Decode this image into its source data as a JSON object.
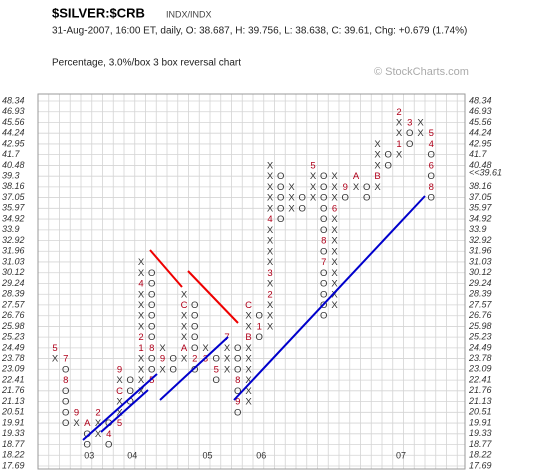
{
  "chart_data": {
    "type": "point-figure",
    "title": "$SILVER:$CRB",
    "subtitle": "INDX/INDX",
    "info": "31-Aug-2007, 16:00 ET, daily, O: 38.687, H: 39.756, L: 38.638, C: 39.61, Chg: +0.679 (1.74%)",
    "method": "Percentage, 3.0%/box 3 box reversal chart",
    "credit": "© StockCharts.com",
    "log_scale": true,
    "grid": true,
    "ylim": [
      17.69,
      48.34
    ],
    "yticks": [
      48.34,
      46.93,
      45.56,
      44.24,
      42.95,
      41.7,
      40.48,
      39.3,
      38.16,
      37.05,
      35.97,
      34.92,
      33.9,
      32.92,
      31.96,
      31.03,
      30.12,
      29.24,
      28.39,
      27.57,
      26.76,
      25.98,
      25.23,
      24.49,
      23.78,
      23.09,
      22.41,
      21.76,
      21.13,
      20.51,
      19.91,
      19.33,
      18.77,
      18.22,
      17.69
    ],
    "y2ticks": [
      48.34,
      46.93,
      45.56,
      44.24,
      42.95,
      41.7,
      40.48,
      {
        "value": 39.61,
        "label": "<<39.61"
      },
      38.16,
      37.05,
      35.97,
      34.92,
      33.9,
      32.92,
      31.96,
      31.03,
      30.12,
      29.24,
      28.39,
      27.57,
      26.76,
      25.98,
      25.23,
      24.49,
      23.78,
      23.09,
      22.41,
      21.76,
      21.13,
      20.51,
      19.91,
      19.33,
      18.77,
      18.22,
      17.69
    ],
    "current_color": "#cc0000",
    "symbol_color": "#333333",
    "month_color": "#b0001a",
    "columns": [
      {
        "top": 24.49,
        "cells": [
          "5",
          "X"
        ]
      },
      {
        "top": 23.78,
        "cells": [
          "7",
          "O",
          "8",
          "O",
          "O",
          "O",
          "O"
        ]
      },
      {
        "top": 20.51,
        "cells": [
          "9",
          "X"
        ]
      },
      {
        "top": 19.91,
        "cells": [
          "A",
          "O",
          "O"
        ],
        "year": "03"
      },
      {
        "top": 20.51,
        "cells": [
          "2",
          "X",
          "X"
        ]
      },
      {
        "top": 19.91,
        "cells": [
          "O",
          "4",
          "O"
        ]
      },
      {
        "top": 23.09,
        "cells": [
          "9",
          "X",
          "C",
          "X",
          "X",
          "5"
        ]
      },
      {
        "top": 22.41,
        "cells": [
          "O",
          "O",
          "O"
        ],
        "year": "04"
      },
      {
        "top": 31.03,
        "cells": [
          "X",
          "X",
          "4",
          "X",
          "X",
          "X",
          "X",
          "2",
          "1",
          "X",
          "X",
          "X",
          "X"
        ]
      },
      {
        "top": 30.12,
        "cells": [
          "O",
          "O",
          "O",
          "O",
          "O",
          "O",
          "O",
          "8",
          "O",
          "O",
          "5"
        ]
      },
      {
        "top": 24.49,
        "cells": [
          "X",
          "9",
          "X"
        ]
      },
      {
        "top": 23.78,
        "cells": [
          "O",
          "O"
        ]
      },
      {
        "top": 28.39,
        "cells": [
          "X",
          "C",
          "X",
          "X",
          "X",
          "A",
          "X"
        ]
      },
      {
        "top": 27.57,
        "cells": [
          "O",
          "O",
          "O",
          "O",
          "O",
          "2",
          "O"
        ]
      },
      {
        "top": 24.49,
        "cells": [
          "X",
          "3"
        ],
        "year": "05"
      },
      {
        "top": 23.78,
        "cells": [
          "O",
          "5",
          "O"
        ]
      },
      {
        "top": 25.23,
        "cells": [
          "7",
          "X",
          "X",
          "X"
        ]
      },
      {
        "top": 24.49,
        "cells": [
          "O",
          "O",
          "O",
          "8",
          "O",
          "9",
          "O"
        ]
      },
      {
        "top": 27.57,
        "cells": [
          "C",
          "X",
          "X",
          "B",
          "X",
          "X",
          "X",
          "X",
          "X",
          "X"
        ]
      },
      {
        "top": 26.76,
        "cells": [
          "O",
          "1",
          "O"
        ],
        "year": "06"
      },
      {
        "top": 40.48,
        "cells": [
          "X",
          "X",
          "X",
          "X",
          "X",
          "4",
          "X",
          "X",
          "X",
          "X",
          "3",
          "X",
          "2",
          "X",
          "X",
          "X"
        ]
      },
      {
        "top": 39.3,
        "cells": [
          "O",
          "O",
          "O",
          "O",
          "O"
        ]
      },
      {
        "top": 38.16,
        "cells": [
          "X",
          "X",
          "X"
        ]
      },
      {
        "top": 37.05,
        "cells": [
          "O",
          "O"
        ]
      },
      {
        "top": 40.48,
        "cells": [
          "5",
          "X",
          "X",
          "X"
        ]
      },
      {
        "top": 39.3,
        "cells": [
          "O",
          "O",
          "O",
          "O",
          "O",
          "O",
          "8",
          "O",
          "7",
          "O",
          "O",
          "O",
          "O",
          "O"
        ]
      },
      {
        "top": 39.3,
        "cells": [
          "X",
          "X",
          "X",
          "6",
          "X",
          "X",
          "X",
          "X",
          "X",
          "X",
          "X",
          "X",
          "X"
        ]
      },
      {
        "top": 38.16,
        "cells": [
          "9",
          "O"
        ]
      },
      {
        "top": 39.3,
        "cells": [
          "A",
          "X"
        ]
      },
      {
        "top": 38.16,
        "cells": [
          "O",
          "O"
        ]
      },
      {
        "top": 42.95,
        "cells": [
          "X",
          "X",
          "X",
          "B",
          "X"
        ]
      },
      {
        "top": 41.7,
        "cells": [
          "O",
          "O"
        ]
      },
      {
        "top": 46.93,
        "cells": [
          "2",
          "X",
          "X",
          "1",
          "X"
        ],
        "year": "07"
      },
      {
        "top": 45.56,
        "cells": [
          "3",
          "O",
          "O"
        ]
      },
      {
        "top": 45.56,
        "cells": [
          "X",
          "X"
        ]
      },
      {
        "top": 44.24,
        "cells": [
          "5",
          "4",
          "O",
          "6",
          "O",
          "8",
          "O"
        ]
      }
    ]
  }
}
